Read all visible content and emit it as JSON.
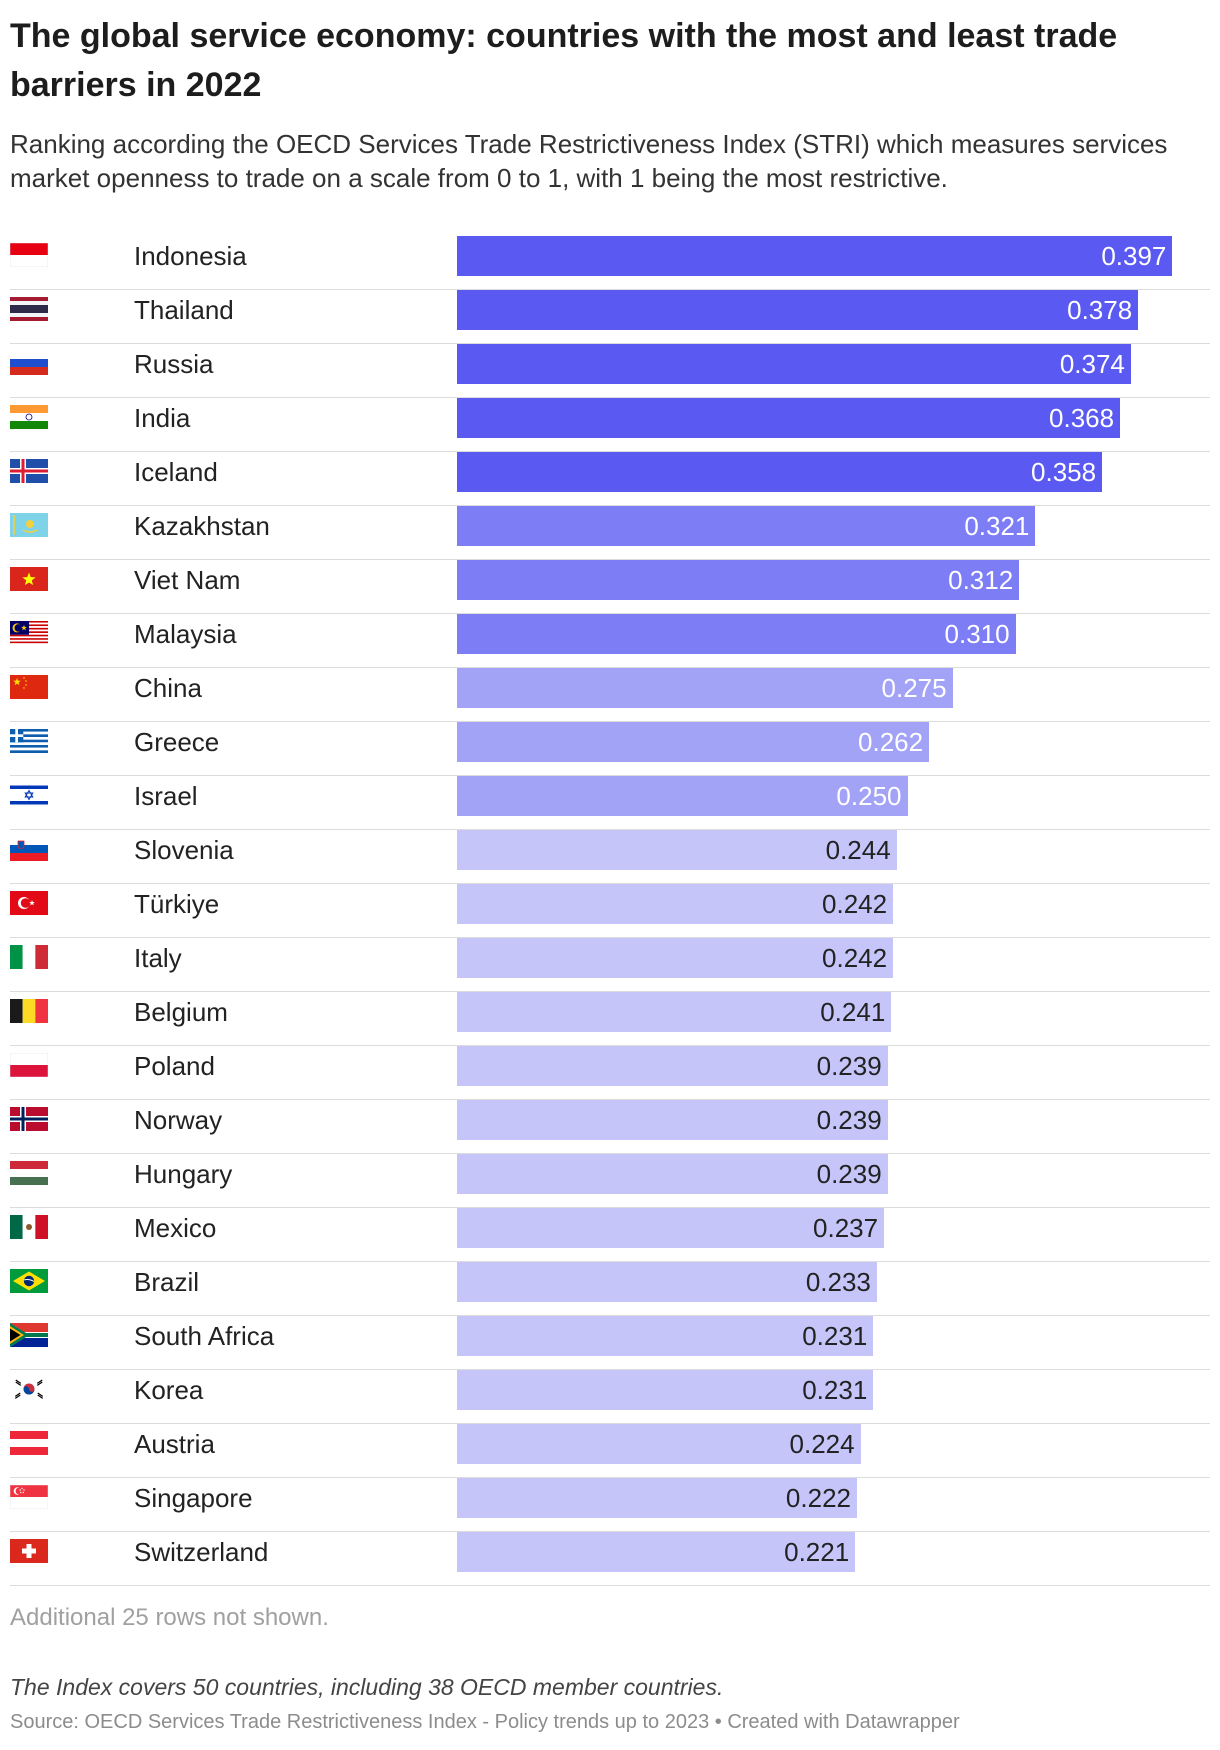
{
  "header": {
    "title": "The global service economy: countries with the most and least trade barriers in 2022",
    "subtitle": "Ranking according the OECD Services Trade Restrictiveness Index (STRI) which measures services market openness to trade on a scale from 0 to 1, with 1 being the most restrictive."
  },
  "colors": {
    "tier_high": "#5a5af2",
    "tier_mid": "#7d7df5",
    "tier_lowmid": "#a2a2f7",
    "tier_low": "#c5c5fa",
    "label_light": "#ffffff",
    "label_dark": "#222222"
  },
  "chart_data": {
    "type": "bar",
    "orientation": "horizontal",
    "title": "The global service economy: countries with the most and least trade barriers in 2022",
    "value_range": [
      0,
      1
    ],
    "grid": false,
    "rows": [
      {
        "country": "Indonesia",
        "value": 0.397,
        "label": "0.397",
        "flag": "indonesia",
        "tier": "high"
      },
      {
        "country": "Thailand",
        "value": 0.378,
        "label": "0.378",
        "flag": "thailand",
        "tier": "high"
      },
      {
        "country": "Russia",
        "value": 0.374,
        "label": "0.374",
        "flag": "russia",
        "tier": "high"
      },
      {
        "country": "India",
        "value": 0.368,
        "label": "0.368",
        "flag": "india",
        "tier": "high"
      },
      {
        "country": "Iceland",
        "value": 0.358,
        "label": "0.358",
        "flag": "iceland",
        "tier": "high"
      },
      {
        "country": "Kazakhstan",
        "value": 0.321,
        "label": "0.321",
        "flag": "kazakhstan",
        "tier": "mid"
      },
      {
        "country": "Viet Nam",
        "value": 0.312,
        "label": "0.312",
        "flag": "vietnam",
        "tier": "mid"
      },
      {
        "country": "Malaysia",
        "value": 0.31,
        "label": "0.310",
        "flag": "malaysia",
        "tier": "mid"
      },
      {
        "country": "China",
        "value": 0.275,
        "label": "0.275",
        "flag": "china",
        "tier": "lowmid"
      },
      {
        "country": "Greece",
        "value": 0.262,
        "label": "0.262",
        "flag": "greece",
        "tier": "lowmid"
      },
      {
        "country": "Israel",
        "value": 0.25,
        "label": "0.250",
        "flag": "israel",
        "tier": "lowmid"
      },
      {
        "country": "Slovenia",
        "value": 0.244,
        "label": "0.244",
        "flag": "slovenia",
        "tier": "low"
      },
      {
        "country": "Türkiye",
        "value": 0.242,
        "label": "0.242",
        "flag": "turkiye",
        "tier": "low"
      },
      {
        "country": "Italy",
        "value": 0.242,
        "label": "0.242",
        "flag": "italy",
        "tier": "low"
      },
      {
        "country": "Belgium",
        "value": 0.241,
        "label": "0.241",
        "flag": "belgium",
        "tier": "low"
      },
      {
        "country": "Poland",
        "value": 0.239,
        "label": "0.239",
        "flag": "poland",
        "tier": "low"
      },
      {
        "country": "Norway",
        "value": 0.239,
        "label": "0.239",
        "flag": "norway",
        "tier": "low"
      },
      {
        "country": "Hungary",
        "value": 0.239,
        "label": "0.239",
        "flag": "hungary",
        "tier": "low"
      },
      {
        "country": "Mexico",
        "value": 0.237,
        "label": "0.237",
        "flag": "mexico",
        "tier": "low"
      },
      {
        "country": "Brazil",
        "value": 0.233,
        "label": "0.233",
        "flag": "brazil",
        "tier": "low"
      },
      {
        "country": "South Africa",
        "value": 0.231,
        "label": "0.231",
        "flag": "southafrica",
        "tier": "low"
      },
      {
        "country": "Korea",
        "value": 0.231,
        "label": "0.231",
        "flag": "korea",
        "tier": "low"
      },
      {
        "country": "Austria",
        "value": 0.224,
        "label": "0.224",
        "flag": "austria",
        "tier": "low"
      },
      {
        "country": "Singapore",
        "value": 0.222,
        "label": "0.222",
        "flag": "singapore",
        "tier": "low"
      },
      {
        "country": "Switzerland",
        "value": 0.221,
        "label": "0.221",
        "flag": "switzerland",
        "tier": "low"
      }
    ]
  },
  "footer": {
    "rows_note": "Additional 25 rows not shown.",
    "note": "The Index covers 50 countries, including 38 OECD member countries.",
    "source": "Source: OECD Services Trade Restrictiveness Index - Policy trends up to 2023 • Created with Datawrapper"
  }
}
